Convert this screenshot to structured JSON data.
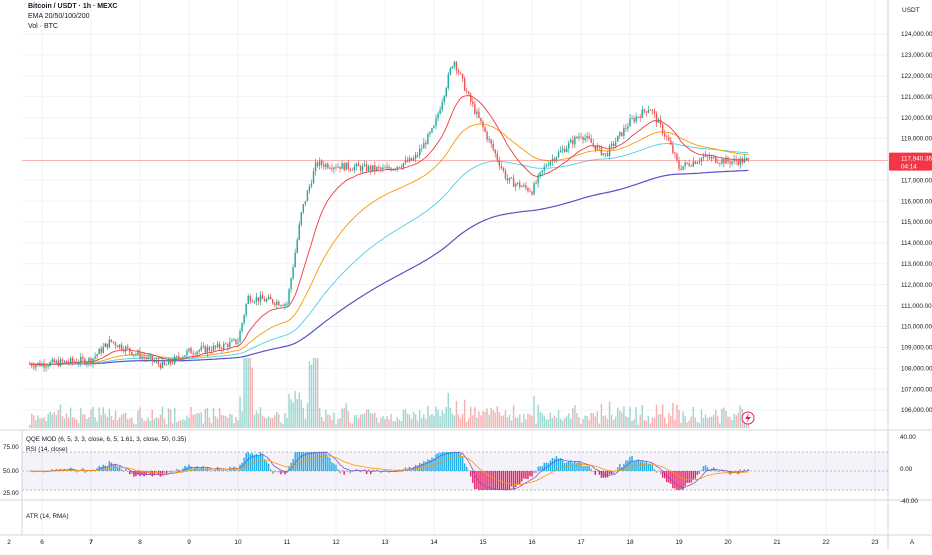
{
  "header": {
    "title": "Bitcoin / USDT · 1h · MEXC",
    "ema_label": "EMA 20/50/100/200",
    "vol_label": "Vol · BTC"
  },
  "price_axis": {
    "currency": "USDT",
    "ticks": [
      "124,000.00",
      "123,000.00",
      "122,000.00",
      "121,000.00",
      "120,000.00",
      "119,000.00",
      "117,000.00",
      "116,000.00",
      "115,000.00",
      "114,000.00",
      "113,000.00",
      "112,000.00",
      "111,000.00",
      "110,000.00",
      "109,000.00",
      "108,000.00",
      "107,000.00",
      "106,000.00"
    ],
    "last_price": "117,940.36",
    "countdown": "04:14"
  },
  "indicators": {
    "qqe_label": "QQE MOD (6, 5, 3, 3, close, 6, 5, 1.61, 3, close, 50, 0.35)",
    "rsi_label": "RSI (14, close)",
    "left_ticks": [
      "75.00",
      "50.00",
      "25.00"
    ],
    "right_ticks": [
      "40.00",
      "0.00",
      "-40.00"
    ],
    "atr_label": "ATR (14, RMA)"
  },
  "time_axis": {
    "labels": [
      "6",
      "7",
      "8",
      "9",
      "10",
      "11",
      "12",
      "13",
      "14",
      "15",
      "16",
      "17",
      "18",
      "19",
      "20",
      "21",
      "22",
      "23"
    ],
    "corner_left": "2",
    "corner_right": "A"
  },
  "colors": {
    "up": "#26a69a",
    "down": "#ef5350",
    "ema20": "#f23645",
    "ema50": "#ff9800",
    "ema100": "#4dd0e1",
    "ema200": "#5b4fc7",
    "qqe_up": "#22aee6",
    "qqe_down": "#e91e63",
    "qqe_neutral": "#9e9e9e"
  },
  "chart_data": {
    "type": "candlestick",
    "x_unit": "date (July 2025, 1h candles)",
    "y_range": [
      105500,
      124500
    ],
    "price_path": [
      {
        "x": "6",
        "y": 108200
      },
      {
        "x": "7",
        "y": 108400
      },
      {
        "x": "7.4",
        "y": 109300
      },
      {
        "x": "8",
        "y": 108600
      },
      {
        "x": "8.5",
        "y": 108100
      },
      {
        "x": "9",
        "y": 108800
      },
      {
        "x": "9.6",
        "y": 109000
      },
      {
        "x": "10",
        "y": 109300
      },
      {
        "x": "10.2",
        "y": 111400
      },
      {
        "x": "11",
        "y": 111100
      },
      {
        "x": "11.3",
        "y": 115500
      },
      {
        "x": "11.6",
        "y": 117800
      },
      {
        "x": "12",
        "y": 117700
      },
      {
        "x": "13",
        "y": 117500
      },
      {
        "x": "13.6",
        "y": 118000
      },
      {
        "x": "14",
        "y": 119500
      },
      {
        "x": "14.4",
        "y": 122800
      },
      {
        "x": "14.7",
        "y": 121000
      },
      {
        "x": "15",
        "y": 119500
      },
      {
        "x": "15.5",
        "y": 117000
      },
      {
        "x": "16",
        "y": 116500
      },
      {
        "x": "16.3",
        "y": 117800
      },
      {
        "x": "17",
        "y": 119200
      },
      {
        "x": "17.5",
        "y": 118200
      },
      {
        "x": "18",
        "y": 119800
      },
      {
        "x": "18.4",
        "y": 120500
      },
      {
        "x": "18.8",
        "y": 118800
      },
      {
        "x": "19",
        "y": 117600
      },
      {
        "x": "19.5",
        "y": 118100
      },
      {
        "x": "20",
        "y": 117900
      },
      {
        "x": "20.4",
        "y": 117940
      }
    ],
    "last_price": 117940.36,
    "qqe_range": [
      -40,
      40
    ]
  }
}
